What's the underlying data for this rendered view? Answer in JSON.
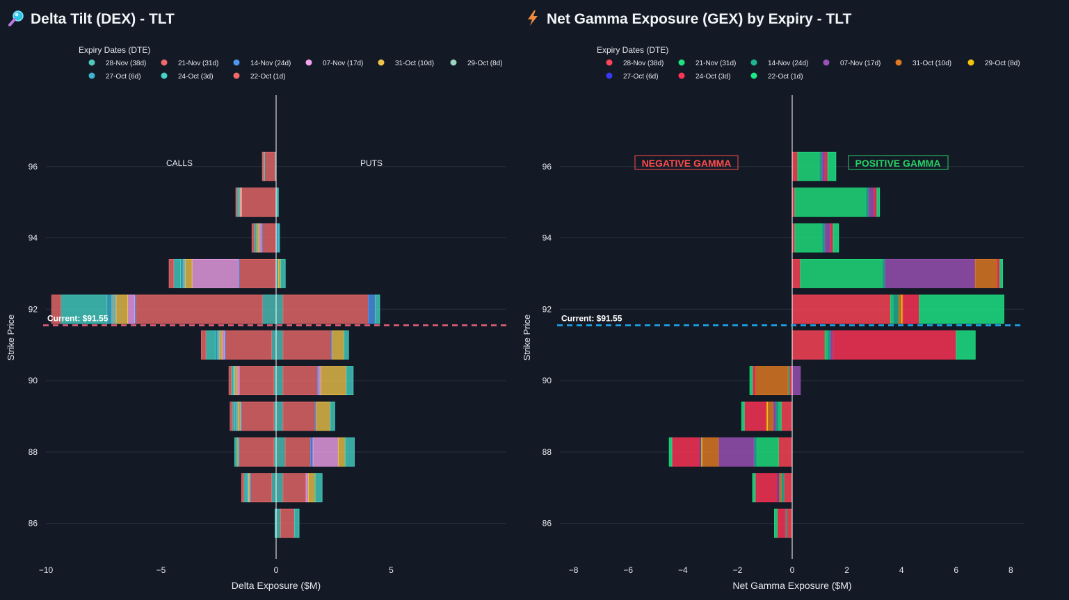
{
  "colors": {
    "background": "#131a26",
    "grid": "#2b3242",
    "axis_text": "#e6e8ec",
    "left_current_line": "#e8607a",
    "right_current_line": "#1eaaf1",
    "negative_gamma": "#ff4b4b",
    "positive_gamma": "#25d366"
  },
  "left": {
    "title": "Delta Tilt (DEX) - TLT",
    "title_icon": "magnifier-icon",
    "legend_title": "Expiry Dates (DTE)",
    "legend": [
      {
        "label": "28-Nov (38d)",
        "color": "#4ec7bd"
      },
      {
        "label": "21-Nov (31d)",
        "color": "#f06a6a"
      },
      {
        "label": "14-Nov (24d)",
        "color": "#4f95ee"
      },
      {
        "label": "07-Nov (17d)",
        "color": "#f3a3ec"
      },
      {
        "label": "31-Oct (10d)",
        "color": "#f0c44a"
      },
      {
        "label": "29-Oct (8d)",
        "color": "#9bd4bf"
      },
      {
        "label": "27-Oct (6d)",
        "color": "#3fb3d0"
      },
      {
        "label": "24-Oct (3d)",
        "color": "#44d3c4"
      },
      {
        "label": "22-Oct (1d)",
        "color": "#f06a6a"
      }
    ],
    "current_label": "Current: $91.55",
    "annotation_calls": "CALLS",
    "annotation_puts": "PUTS"
  },
  "right": {
    "title": "Net Gamma Exposure (GEX) by Expiry - TLT",
    "title_icon": "lightning-icon",
    "legend_title": "Expiry Dates (DTE)",
    "legend": [
      {
        "label": "28-Nov (38d)",
        "color": "#ff4458"
      },
      {
        "label": "21-Nov (31d)",
        "color": "#1ee07c"
      },
      {
        "label": "14-Nov (24d)",
        "color": "#1fb393"
      },
      {
        "label": "07-Nov (17d)",
        "color": "#9b51b5"
      },
      {
        "label": "31-Oct (10d)",
        "color": "#e07a22"
      },
      {
        "label": "29-Oct (8d)",
        "color": "#f2c40f"
      },
      {
        "label": "27-Oct (6d)",
        "color": "#3838f0"
      },
      {
        "label": "24-Oct (3d)",
        "color": "#ff3355"
      },
      {
        "label": "22-Oct (1d)",
        "color": "#1ee885"
      }
    ],
    "current_label": "Current: $91.55",
    "annotation_negative": "NEGATIVE GAMMA",
    "annotation_positive": "POSITIVE GAMMA"
  },
  "chart_data": [
    {
      "type": "bar",
      "orientation": "horizontal",
      "stacked": "relative",
      "title": "Delta Tilt (DEX) - TLT",
      "xlabel": "Delta Exposure ($M)",
      "ylabel": "Strike Price",
      "xlim": [
        -10,
        10
      ],
      "ylim": [
        85,
        98
      ],
      "xticks": [
        -10,
        -5,
        0,
        5
      ],
      "xtick_labels": [
        "−10",
        "−5",
        "0",
        "5"
      ],
      "yticks": [
        86,
        88,
        90,
        92,
        94,
        96
      ],
      "yticks_labels": [
        "86",
        "88",
        "90",
        "92",
        "94",
        "96"
      ],
      "current_price": 91.55,
      "bar_height": 0.8,
      "strikes": [
        86,
        87,
        88,
        89,
        90,
        91,
        92,
        93,
        94,
        95,
        96
      ],
      "series": [
        {
          "name": "28-Nov (38d)",
          "color": "#4ec7bd",
          "values": [
            0.0,
            -0.2,
            -0.1,
            -0.1,
            -0.1,
            -0.2,
            -0.6,
            0.0,
            0.0,
            0.0,
            -0.05
          ]
        },
        {
          "name": "21-Nov (31d)",
          "color": "#f06a6a",
          "values": [
            0.0,
            -0.9,
            -1.5,
            -1.4,
            -1.5,
            -2.0,
            -5.5,
            -1.6,
            -0.6,
            -1.5,
            -0.45
          ]
        },
        {
          "name": "14-Nov (24d)",
          "color": "#4f95ee",
          "values": [
            0.0,
            -0.05,
            -0.05,
            -0.05,
            0.0,
            -0.05,
            -0.05,
            -0.05,
            -0.05,
            0.0,
            0.0
          ]
        },
        {
          "name": "07-Nov (17d)",
          "color": "#f3a3ec",
          "values": [
            0.0,
            0.0,
            0.0,
            0.0,
            -0.1,
            -0.1,
            -0.3,
            -2.0,
            -0.1,
            -0.05,
            0.0
          ]
        },
        {
          "name": "31-Oct (10d)",
          "color": "#f0c44a",
          "values": [
            0.0,
            -0.05,
            -0.05,
            -0.1,
            -0.1,
            -0.1,
            -0.5,
            -0.3,
            -0.1,
            -0.05,
            0.0
          ]
        },
        {
          "name": "29-Oct (8d)",
          "color": "#9bd4bf",
          "values": [
            0.0,
            -0.05,
            0.0,
            -0.1,
            -0.05,
            -0.1,
            -0.2,
            -0.1,
            0.0,
            0.0,
            0.0
          ]
        },
        {
          "name": "27-Oct (6d)",
          "color": "#3fb3d0",
          "values": [
            0.0,
            -0.05,
            0.0,
            -0.05,
            0.0,
            -0.1,
            -0.2,
            -0.1,
            0.0,
            -0.05,
            0.0
          ]
        },
        {
          "name": "24-Oct (3d)",
          "color": "#44d3c4",
          "values": [
            -0.05,
            -0.1,
            -0.1,
            -0.1,
            -0.1,
            -0.4,
            -2.0,
            -0.3,
            -0.1,
            -0.05,
            -0.05
          ]
        },
        {
          "name": "22-Oct (1d)",
          "color": "#f06a6a",
          "values": [
            0.0,
            -0.1,
            0.0,
            -0.1,
            -0.1,
            -0.2,
            -0.4,
            -0.2,
            -0.1,
            -0.05,
            -0.05
          ]
        },
        {
          "name": "28-Nov (38d) puts",
          "color": "#4ec7bd",
          "values": [
            0.2,
            0.3,
            0.4,
            0.3,
            0.3,
            0.3,
            0.3,
            0.1,
            0.05,
            0.05,
            0.0
          ]
        },
        {
          "name": "21-Nov (31d) puts",
          "color": "#f06a6a",
          "values": [
            0.6,
            1.0,
            1.1,
            1.4,
            1.5,
            2.1,
            3.7,
            0.0,
            0.0,
            0.0,
            0.0
          ]
        },
        {
          "name": "14-Nov (24d) puts",
          "color": "#4f95ee",
          "values": [
            0.0,
            0.0,
            0.1,
            0.05,
            0.05,
            0.05,
            0.3,
            0.0,
            0.05,
            0.0,
            0.0
          ]
        },
        {
          "name": "07-Nov (17d) puts",
          "color": "#f3a3ec",
          "values": [
            0.0,
            0.1,
            1.1,
            0.0,
            0.1,
            0.0,
            0.0,
            0.0,
            0.0,
            0.0,
            0.0
          ]
        },
        {
          "name": "31-Oct (10d) puts",
          "color": "#f0c44a",
          "values": [
            0.0,
            0.3,
            0.3,
            0.6,
            1.1,
            0.5,
            0.0,
            0.1,
            0.0,
            0.0,
            0.0
          ]
        },
        {
          "name": "24-Oct (3d) puts",
          "color": "#44d3c4",
          "values": [
            0.2,
            0.3,
            0.4,
            0.2,
            0.3,
            0.2,
            0.2,
            0.2,
            0.05,
            0.05,
            0.0
          ]
        }
      ]
    },
    {
      "type": "bar",
      "orientation": "horizontal",
      "stacked": "relative",
      "title": "Net Gamma Exposure (GEX) by Expiry - TLT",
      "xlabel": "Net Gamma Exposure ($M)",
      "ylabel": "Strike Price",
      "xlim": [
        -8.5,
        8.5
      ],
      "ylim": [
        85,
        98
      ],
      "xticks": [
        -8,
        -6,
        -4,
        -2,
        0,
        2,
        4,
        6,
        8
      ],
      "xtick_labels": [
        "−8",
        "−6",
        "−4",
        "−2",
        "0",
        "2",
        "4",
        "6",
        "8"
      ],
      "yticks": [
        86,
        88,
        90,
        92,
        94,
        96
      ],
      "yticks_labels": [
        "86",
        "88",
        "90",
        "92",
        "94",
        "96"
      ],
      "current_price": 91.55,
      "bar_height": 0.8,
      "strikes": [
        86,
        87,
        88,
        89,
        90,
        91,
        92,
        93,
        94,
        95,
        96
      ],
      "series": [
        {
          "name": "28-Nov (38d)",
          "color": "#ff4458",
          "values": [
            -0.2,
            -0.3,
            -0.5,
            -0.4,
            -0.1,
            1.2,
            3.6,
            0.3,
            0.1,
            0.1,
            0.2
          ]
        },
        {
          "name": "21-Nov (31d)",
          "color": "#1ee07c",
          "values": [
            0.0,
            0.0,
            -0.8,
            -0.1,
            0.0,
            0.1,
            0.1,
            3.0,
            1.0,
            2.6,
            0.8
          ]
        },
        {
          "name": "14-Nov (24d)",
          "color": "#1fb393",
          "values": [
            -0.05,
            -0.1,
            -0.1,
            -0.1,
            -0.05,
            0.1,
            0.2,
            0.1,
            0.1,
            0.1,
            0.1
          ]
        },
        {
          "name": "07-Nov (17d)",
          "color": "#9b51b5",
          "values": [
            0.0,
            0.0,
            -1.3,
            -0.1,
            0.3,
            0.1,
            0.0,
            3.3,
            0.2,
            0.2,
            0.1
          ]
        },
        {
          "name": "31-Oct (10d)",
          "color": "#e07a22",
          "values": [
            0.0,
            -0.1,
            -0.6,
            -0.2,
            -1.2,
            0.0,
            0.1,
            0.8,
            0.0,
            0.0,
            0.0
          ]
        },
        {
          "name": "29-Oct (8d)",
          "color": "#f2c40f",
          "values": [
            0.0,
            0.0,
            -0.05,
            -0.05,
            0.0,
            0.0,
            0.05,
            0.0,
            0.0,
            0.0,
            0.0
          ]
        },
        {
          "name": "27-Oct (6d)",
          "color": "#3838f0",
          "values": [
            0.0,
            -0.05,
            -0.05,
            0.0,
            0.0,
            0.0,
            0.0,
            0.0,
            0.0,
            0.0,
            0.0
          ]
        },
        {
          "name": "24-Oct (3d)",
          "color": "#ff3355",
          "values": [
            -0.3,
            -0.8,
            -1.0,
            -0.8,
            -0.1,
            4.5,
            0.6,
            0.1,
            0.1,
            0.1,
            0.1
          ]
        },
        {
          "name": "22-Oct (1d)",
          "color": "#1ee885",
          "values": [
            -0.1,
            -0.1,
            -0.1,
            -0.1,
            -0.1,
            0.7,
            3.1,
            0.1,
            0.2,
            0.1,
            0.3
          ]
        }
      ]
    }
  ]
}
